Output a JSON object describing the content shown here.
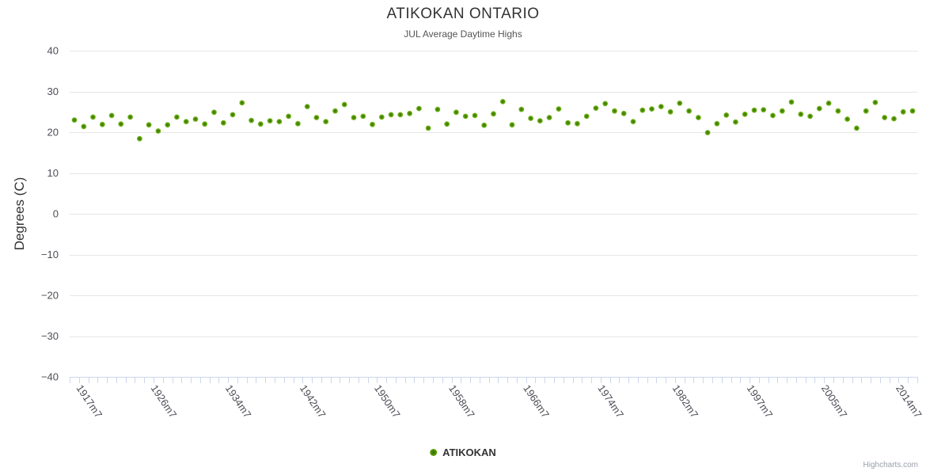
{
  "credit": "Highcharts.com",
  "colors": {
    "marker_green_center": "#2f6d00",
    "marker_green_mid": "#56960a",
    "marker_green_edge": "#83c12a",
    "gridline": "#e6e6e6",
    "axis_line": "#ccd6eb",
    "title_text": "#333333",
    "subtitle_text": "#555555",
    "axis_label_text": "#4d4d56"
  },
  "chart_data": {
    "type": "scatter",
    "title": "ATIKOKAN ONTARIO",
    "subtitle": "JUL Average Daytime Highs",
    "xlabel": "",
    "ylabel": "Degrees (C)",
    "ylim": [
      -40,
      40
    ],
    "y_ticks": [
      40,
      30,
      20,
      10,
      0,
      -10,
      -20,
      -30,
      -40
    ],
    "grid": true,
    "legend_position": "bottom-center",
    "x_tick_count": 92,
    "x_labels": [
      {
        "index": 0,
        "label": "1917m7"
      },
      {
        "index": 8,
        "label": "1926m7"
      },
      {
        "index": 16,
        "label": "1934m7"
      },
      {
        "index": 24,
        "label": "1942m7"
      },
      {
        "index": 32,
        "label": "1950m7"
      },
      {
        "index": 40,
        "label": "1958m7"
      },
      {
        "index": 48,
        "label": "1966m7"
      },
      {
        "index": 56,
        "label": "1974m7"
      },
      {
        "index": 64,
        "label": "1982m7"
      },
      {
        "index": 72,
        "label": "1997m7"
      },
      {
        "index": 80,
        "label": "2005m7"
      },
      {
        "index": 88,
        "label": "2014m7"
      }
    ],
    "series": [
      {
        "name": "ATIKOKAN",
        "color": "#64a80b",
        "values": [
          23.0,
          21.4,
          23.7,
          21.9,
          24.1,
          22.0,
          23.7,
          18.4,
          21.8,
          20.3,
          21.8,
          23.7,
          22.6,
          23.2,
          22.0,
          24.9,
          22.3,
          24.3,
          27.2,
          22.9,
          22.0,
          22.8,
          22.6,
          23.9,
          22.1,
          26.3,
          23.6,
          22.6,
          25.2,
          26.8,
          23.6,
          23.9,
          21.9,
          23.7,
          24.3,
          24.3,
          24.6,
          25.8,
          21.0,
          25.6,
          22.0,
          24.9,
          23.9,
          24.1,
          21.7,
          24.5,
          27.5,
          21.8,
          25.6,
          23.4,
          22.8,
          23.6,
          25.7,
          22.3,
          22.1,
          23.9,
          25.9,
          27.0,
          25.2,
          24.6,
          22.6,
          25.4,
          25.7,
          26.3,
          25.0,
          27.1,
          25.2,
          23.6,
          19.9,
          22.1,
          24.2,
          22.5,
          24.4,
          25.4,
          25.5,
          24.1,
          25.2,
          27.4,
          24.4,
          23.9,
          25.8,
          27.1,
          25.2,
          23.2,
          21.0,
          25.2,
          27.3,
          23.6,
          23.3,
          25.0,
          25.2
        ]
      }
    ]
  }
}
